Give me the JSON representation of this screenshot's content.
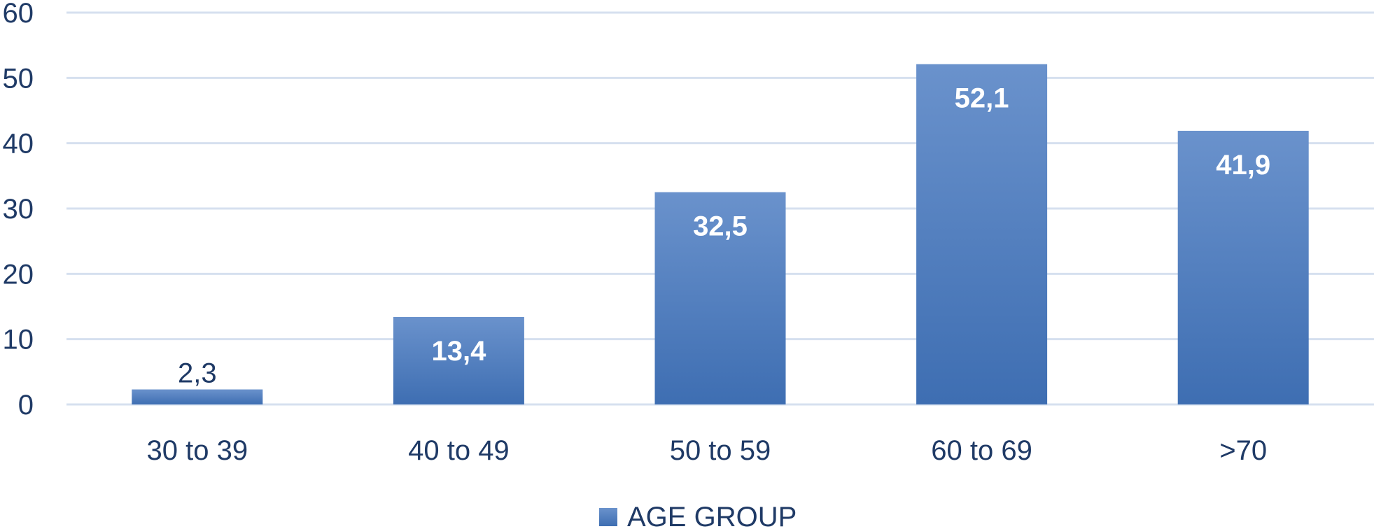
{
  "chart_data": {
    "type": "bar",
    "categories": [
      "30 to 39",
      "40 to 49",
      "50 to 59",
      "60 to 69",
      ">70"
    ],
    "series": [
      {
        "name": "AGE GROUP",
        "values": [
          2.3,
          13.4,
          32.5,
          52.1,
          41.9
        ]
      }
    ],
    "data_labels": [
      "2,3",
      "13,4",
      "32,5",
      "52,1",
      "41,9"
    ],
    "y_ticks": [
      "0",
      "10",
      "20",
      "30",
      "40",
      "50",
      "60"
    ],
    "ylim": [
      0,
      60
    ],
    "grid": true,
    "legend_position": "bottom-center",
    "title": "",
    "xlabel": "",
    "ylabel": ""
  },
  "colors": {
    "bar_top": "#6a92cc",
    "bar_bottom": "#3e6eb2",
    "grid": "#d6e0ef",
    "axis_text": "#1f3a66",
    "label_inside": "#ffffff",
    "label_outside": "#1f3a66"
  }
}
